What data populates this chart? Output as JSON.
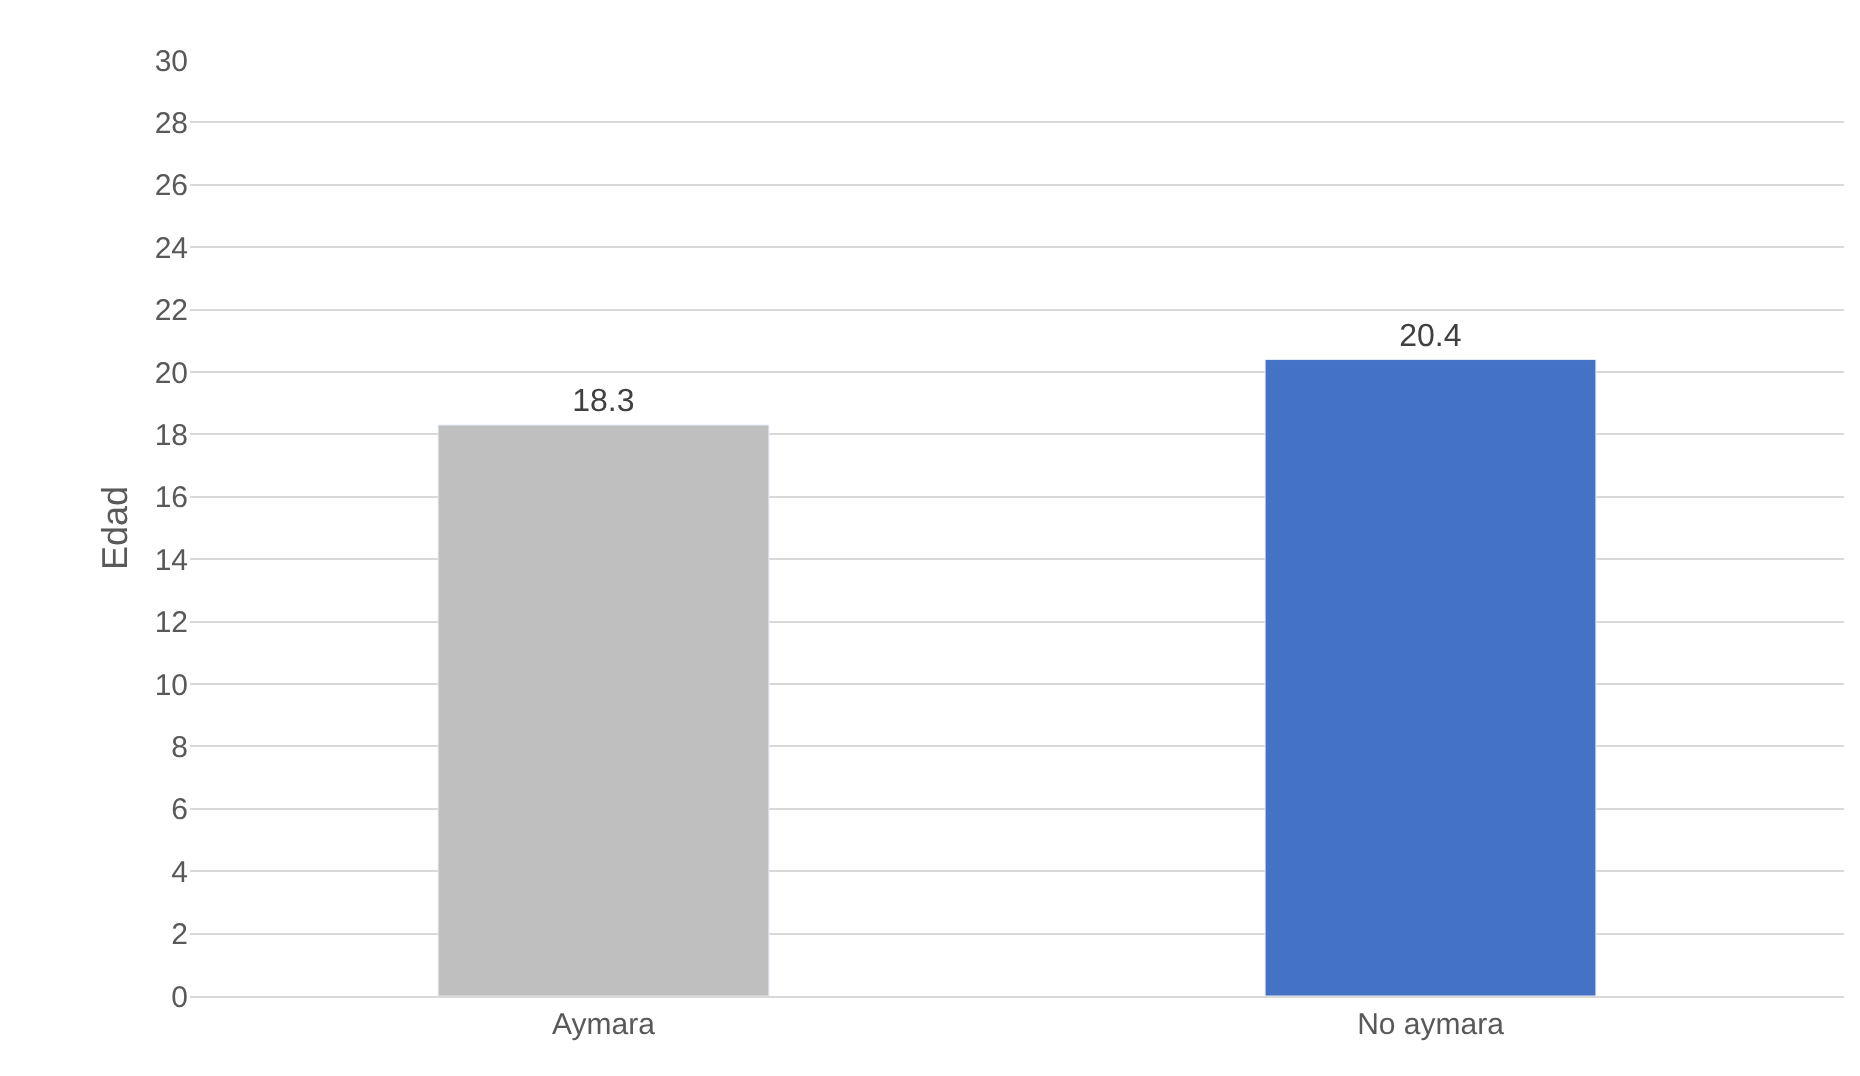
{
  "chart_data": {
    "type": "bar",
    "ylabel": "Edad",
    "categories": [
      "Aymara",
      "No aymara"
    ],
    "values": [
      18.3,
      20.4
    ],
    "colors": [
      "#bfbfbf",
      "#4472c4"
    ],
    "ylim": [
      0,
      30
    ],
    "yticks": [
      0,
      2,
      4,
      6,
      8,
      10,
      12,
      14,
      16,
      18,
      20,
      22,
      24,
      26,
      28,
      30
    ],
    "grid": "y",
    "data_labels": true,
    "legend": false
  }
}
